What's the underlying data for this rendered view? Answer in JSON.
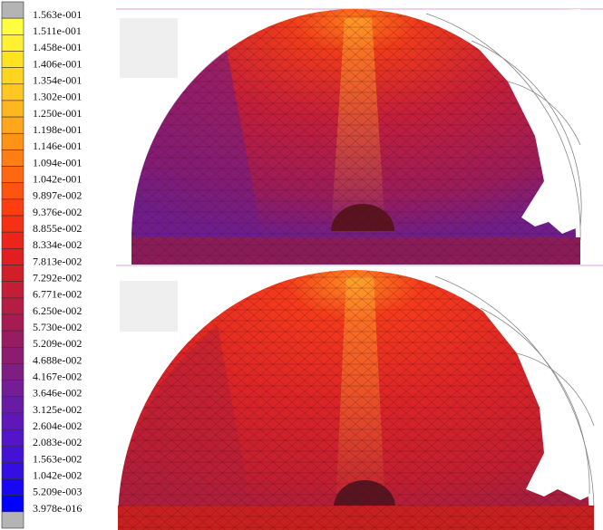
{
  "legend": {
    "labels": [
      "1.563e-001",
      "1.511e-001",
      "1.458e-001",
      "1.406e-001",
      "1.354e-001",
      "1.302e-001",
      "1.250e-001",
      "1.198e-001",
      "1.146e-001",
      "1.094e-001",
      "1.042e-001",
      "9.897e-002",
      "9.376e-002",
      "8.855e-002",
      "8.334e-002",
      "7.813e-002",
      "7.292e-002",
      "6.771e-002",
      "6.250e-002",
      "5.730e-002",
      "5.209e-002",
      "4.688e-002",
      "4.167e-002",
      "3.646e-002",
      "3.125e-002",
      "2.604e-002",
      "2.083e-002",
      "1.563e-002",
      "1.042e-002",
      "5.209e-003",
      "3.978e-016"
    ]
  }
}
